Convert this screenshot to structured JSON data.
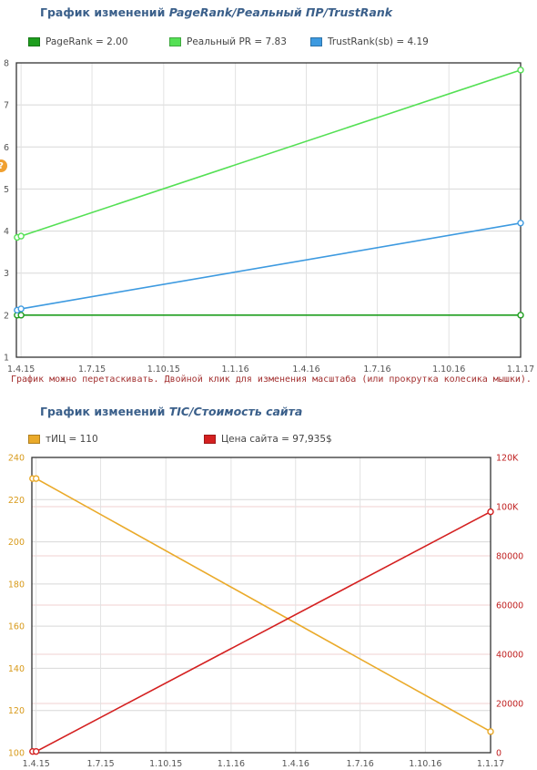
{
  "chart1": {
    "title_prefix": "График изменений ",
    "title_em": "PageRank/Реальный ПР/TrustRank",
    "hint": "График можно перетаскивать. Двойной клик для изменения масштаба (или прокрутка колесика мышки).",
    "help_glyph": "?"
  },
  "chart2": {
    "title_prefix": "График изменений ",
    "title_em": "ТIC/Стоимость сайта"
  },
  "chart_data": [
    {
      "type": "line",
      "title": "График изменений PageRank/Реальный ПР/TrustRank",
      "x_ticks": [
        "1.4.15",
        "1.7.15",
        "1.10.15",
        "1.1.16",
        "1.4.16",
        "1.7.16",
        "1.10.16",
        "1.1.17"
      ],
      "ylim": [
        1,
        8
      ],
      "y_ticks": [
        "1",
        "2",
        "3",
        "4",
        "5",
        "6",
        "7",
        "8"
      ],
      "grid": true,
      "legend": "top",
      "series": [
        {
          "name": "PageRank",
          "legend_label": "PageRank = 2.00",
          "color": "#1e9e1e",
          "points": [
            {
              "x": "2015-03-27",
              "y": 2.0
            },
            {
              "x": "2015-04-01",
              "y": 2.0
            },
            {
              "x": "2017-01-01",
              "y": 2.0
            }
          ]
        },
        {
          "name": "Реальный PR",
          "legend_label": "Реальный PR = 7.83",
          "color": "#55e055",
          "points": [
            {
              "x": "2015-03-27",
              "y": 3.85
            },
            {
              "x": "2015-04-01",
              "y": 3.88
            },
            {
              "x": "2017-01-01",
              "y": 7.83
            }
          ]
        },
        {
          "name": "TrustRank(sb)",
          "legend_label": "TrustRank(sb) = 4.19",
          "color": "#3d9ae0",
          "points": [
            {
              "x": "2015-03-27",
              "y": 2.12
            },
            {
              "x": "2015-04-01",
              "y": 2.15
            },
            {
              "x": "2017-01-01",
              "y": 4.19
            }
          ]
        }
      ]
    },
    {
      "type": "line",
      "title": "График изменений ТIC/Стоимость сайта",
      "x_ticks": [
        "1.4.15",
        "1.7.15",
        "1.10.15",
        "1.1.16",
        "1.4.16",
        "1.7.16",
        "1.10.16",
        "1.1.17"
      ],
      "ylim_left": [
        100,
        240
      ],
      "y_ticks_left": [
        "100",
        "120",
        "140",
        "160",
        "180",
        "200",
        "220",
        "240"
      ],
      "ylim_right": [
        0,
        120000
      ],
      "y_ticks_right": [
        "0",
        "20000",
        "40000",
        "60000",
        "80000",
        "100K",
        "120K"
      ],
      "grid": true,
      "legend": "top",
      "series": [
        {
          "name": "тИЦ",
          "legend_label": "тИЦ = 110",
          "color": "#eaaa2a",
          "axis": "left",
          "points": [
            {
              "x": "2015-03-27",
              "y": 230
            },
            {
              "x": "2015-04-01",
              "y": 230
            },
            {
              "x": "2017-01-01",
              "y": 110
            }
          ]
        },
        {
          "name": "Цена сайта",
          "legend_label": "Цена сайта = 97,935$",
          "color": "#d42020",
          "axis": "right",
          "points": [
            {
              "x": "2015-03-27",
              "y": 500
            },
            {
              "x": "2015-04-01",
              "y": 500
            },
            {
              "x": "2017-01-01",
              "y": 97935
            }
          ]
        }
      ]
    }
  ]
}
